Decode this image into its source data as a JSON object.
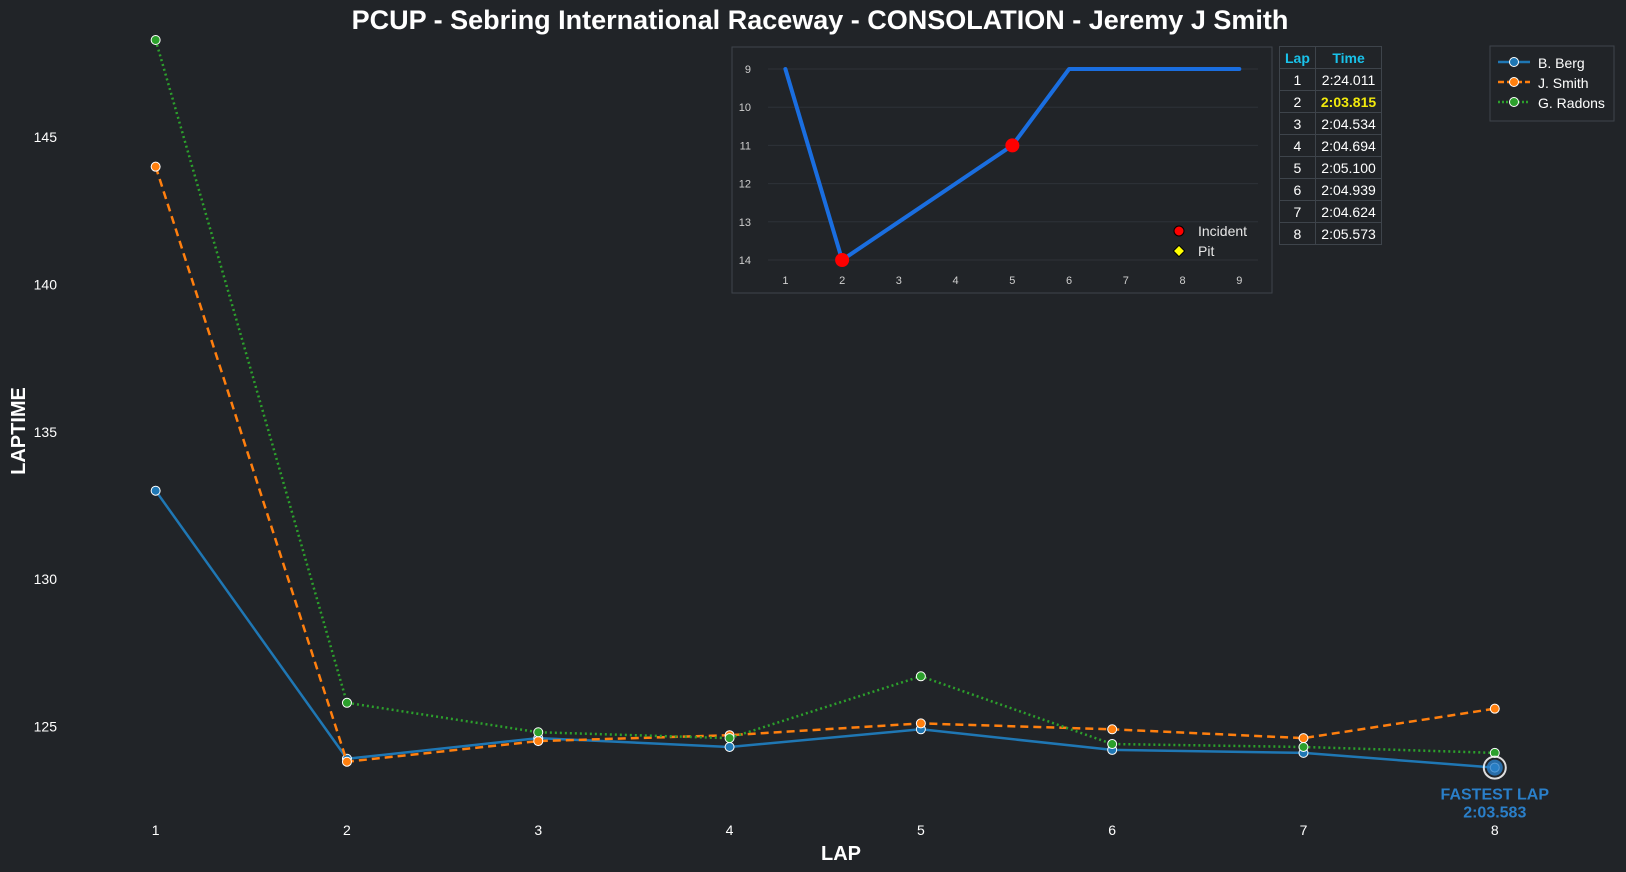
{
  "chart_data": [
    {
      "type": "line",
      "title": "PCUP - Sebring International Raceway - CONSOLATION - Jeremy J Smith",
      "xlabel": "LAP",
      "ylabel": "LAPTIME",
      "x": [
        1,
        2,
        3,
        4,
        5,
        6,
        7,
        8
      ],
      "xlim": [
        0.5,
        8.55
      ],
      "ylim": [
        122.5,
        148.3
      ],
      "yticks": [
        125,
        130,
        135,
        140,
        145
      ],
      "grid": false,
      "legend_position": "top-right",
      "series": [
        {
          "name": "B. Berg",
          "color": "#1f77b4",
          "style": "solid",
          "values": [
            133.0,
            123.9,
            124.6,
            124.3,
            124.9,
            124.2,
            124.1,
            123.6
          ]
        },
        {
          "name": "J. Smith",
          "color": "#ff7f0e",
          "style": "dashed",
          "values": [
            144.0,
            123.8,
            124.5,
            124.7,
            125.1,
            124.9,
            124.6,
            125.6
          ]
        },
        {
          "name": "G. Radons",
          "color": "#2ca02c",
          "style": "dotted",
          "values": [
            148.3,
            125.8,
            124.8,
            124.6,
            126.7,
            124.4,
            124.3,
            124.1
          ]
        }
      ],
      "annotation": {
        "lap": 8,
        "value": 123.6,
        "line1": "FASTEST LAP",
        "line2": "2:03.583",
        "color": "#2a7fc9"
      }
    },
    {
      "type": "line",
      "title": "",
      "x": [
        1,
        2,
        3,
        4,
        5,
        6,
        7,
        8,
        9
      ],
      "values": [
        9,
        14,
        13,
        12,
        11,
        9,
        9,
        9,
        9
      ],
      "xlim": [
        0.2,
        9.4
      ],
      "ylim": [
        9,
        14
      ],
      "y_inverted": true,
      "yticks": [
        9,
        10,
        11,
        12,
        13,
        14
      ],
      "grid": true,
      "line_color": "#1a6ee0",
      "markers": [
        {
          "type": "Incident",
          "lap": 2,
          "value": 14
        },
        {
          "type": "Incident",
          "lap": 5,
          "value": 11
        }
      ],
      "legend": [
        {
          "label": "Incident",
          "color": "#ff0000",
          "shape": "circle"
        },
        {
          "label": "Pit",
          "color": "#ffff00",
          "shape": "diamond"
        }
      ],
      "legend_position": "bottom-right"
    }
  ],
  "table": {
    "headers": [
      "Lap",
      "Time"
    ],
    "rows": [
      {
        "lap": "1",
        "time": "2:24.011",
        "best": false
      },
      {
        "lap": "2",
        "time": "2:03.815",
        "best": true
      },
      {
        "lap": "3",
        "time": "2:04.534",
        "best": false
      },
      {
        "lap": "4",
        "time": "2:04.694",
        "best": false
      },
      {
        "lap": "5",
        "time": "2:05.100",
        "best": false
      },
      {
        "lap": "6",
        "time": "2:04.939",
        "best": false
      },
      {
        "lap": "7",
        "time": "2:04.624",
        "best": false
      },
      {
        "lap": "8",
        "time": "2:05.573",
        "best": false
      }
    ]
  },
  "colors": {
    "background": "#212428",
    "text": "#ffffff",
    "table_header": "#19c2ea",
    "table_best": "#f2ea0c"
  }
}
